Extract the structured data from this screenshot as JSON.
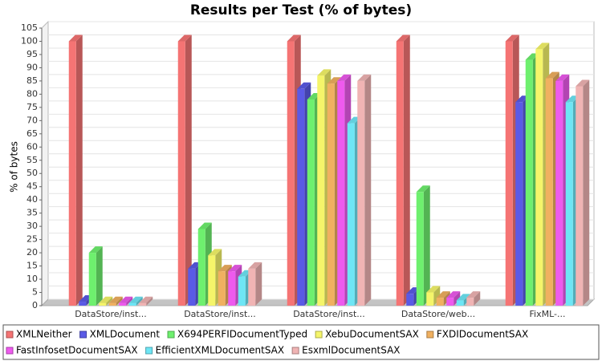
{
  "chart_data": {
    "type": "bar3d",
    "title": "Results per Test (% of bytes)",
    "y_label": "% of bytes",
    "categories": [
      "DataStore/inst...",
      "DataStore/inst...",
      "DataStore/inst...",
      "DataStore/web...",
      "FixML-..."
    ],
    "series": [
      {
        "name": "XMLNeither",
        "color": "#f57474",
        "values": [
          100,
          100,
          100,
          100,
          100
        ]
      },
      {
        "name": "XMLDocument",
        "color": "#5a5ae6",
        "values": [
          1.5,
          14,
          82,
          4.5,
          77
        ]
      },
      {
        "name": "X694PERFIDocumentTyped",
        "color": "#6ef06e",
        "values": [
          20,
          29,
          78,
          43,
          93
        ]
      },
      {
        "name": "XebuDocumentSAX",
        "color": "#f5f56a",
        "values": [
          1,
          19,
          87,
          5,
          97
        ]
      },
      {
        "name": "FXDIDocumentSAX",
        "color": "#f0b060",
        "values": [
          1,
          13,
          84,
          3,
          86
        ]
      },
      {
        "name": "FastInfosetDocumentSAX",
        "color": "#ee5aee",
        "values": [
          1,
          13,
          85,
          3,
          85
        ]
      },
      {
        "name": "EfficientXMLDocumentSAX",
        "color": "#6ee6f5",
        "values": [
          1,
          11,
          69,
          2,
          77
        ]
      },
      {
        "name": "EsxmlDocumentSAX",
        "color": "#f0b4b4",
        "values": [
          1,
          14,
          85,
          3,
          83
        ]
      }
    ],
    "ylim": [
      0,
      105
    ],
    "yticks": [
      0,
      5,
      10,
      15,
      20,
      25,
      30,
      35,
      40,
      45,
      50,
      55,
      60,
      65,
      70,
      75,
      80,
      85,
      90,
      95,
      100,
      105
    ],
    "grid": true,
    "legend": "bottom"
  }
}
